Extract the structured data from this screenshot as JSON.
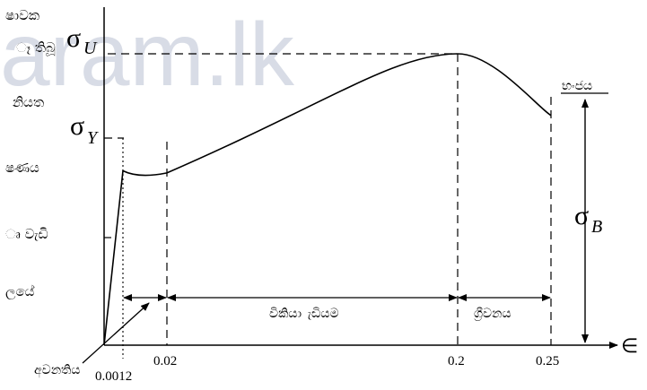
{
  "watermark": "aram.lk",
  "side_text": [
    "ෂාවක",
    "ෑ තිබූ",
    "නියත",
    "ෂණය",
    "ෘ වැඩි",
    "ලයේ"
  ],
  "chart_data": {
    "type": "line",
    "x_symbol": "∈",
    "ticks": [
      "0.0012",
      "0.02",
      "0.2",
      "0.25"
    ],
    "points": [
      [
        0,
        0
      ],
      [
        0.0012,
        0.41
      ],
      [
        0.008,
        0.4
      ],
      [
        0.02,
        0.405
      ],
      [
        0.12,
        0.57
      ],
      [
        0.2,
        0.685
      ],
      [
        0.24,
        0.6
      ],
      [
        0.25,
        0.54
      ]
    ],
    "stress_labels": {
      "yield": {
        "sym": "σ",
        "sub": "Y"
      },
      "ultimate": {
        "sym": "σ",
        "sub": "U"
      },
      "breaking": {
        "sym": "σ",
        "sub": "B"
      }
    },
    "regions": {
      "plastic": "විකියා ැඩියම",
      "necking": "ග්‍රීවනය"
    },
    "annotations": {
      "fracture": "භංජය",
      "elastic_limit": "අවනතිය"
    }
  }
}
